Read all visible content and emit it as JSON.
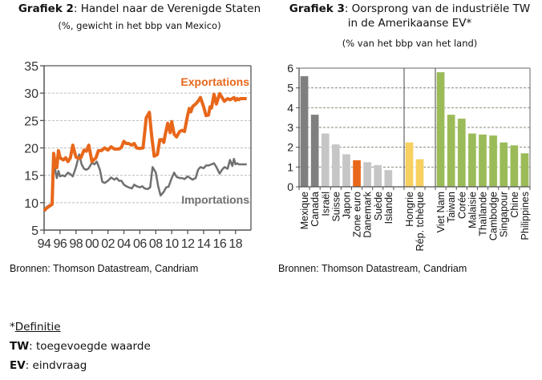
{
  "chart_data": [
    {
      "type": "line",
      "title_bold": "Grafiek 2",
      "title_rest": ": Handel naar de Verenigde Staten",
      "subtitle": "(%, gewicht in het bbp van Mexico)",
      "xlabel": "",
      "ylabel": "",
      "ylim": [
        5,
        35
      ],
      "yticks": [
        "5",
        "10",
        "15",
        "20",
        "25",
        "30",
        "35"
      ],
      "xlim": [
        1994,
        2019.9
      ],
      "xticks": [
        "94",
        "96",
        "98",
        "00",
        "02",
        "04",
        "06",
        "08",
        "10",
        "12",
        "14",
        "16",
        "18"
      ],
      "grid": "horizontal-dashed",
      "series": [
        {
          "name": "Exportations",
          "color": "#e8671a",
          "label_position": "top-right",
          "x": [
            1994.0,
            1994.3,
            1994.6,
            1995.0,
            1995.2,
            1995.45,
            1995.6,
            1995.8,
            1996.0,
            1996.2,
            1996.4,
            1996.7,
            1997.0,
            1997.3,
            1997.6,
            1998.0,
            1998.3,
            1998.6,
            1999.0,
            1999.3,
            1999.6,
            2000.0,
            2000.5,
            2000.8,
            2001.2,
            2001.6,
            2002.0,
            2002.4,
            2002.8,
            2003.1,
            2003.4,
            2003.7,
            2004.0,
            2004.3,
            2004.6,
            2005.0,
            2005.3,
            2005.6,
            2006.0,
            2006.4,
            2006.8,
            2007.2,
            2007.5,
            2007.8,
            2008.2,
            2008.5,
            2008.8,
            2009.0,
            2009.2,
            2009.5,
            2009.8,
            2010.0,
            2010.3,
            2010.6,
            2011.0,
            2011.3,
            2011.6,
            2012.0,
            2012.2,
            2012.4,
            2012.6,
            2012.8,
            2013.0,
            2013.3,
            2013.6,
            2014.0,
            2014.3,
            2014.6,
            2014.8,
            2015.0,
            2015.3,
            2015.6,
            2016.0,
            2016.3,
            2016.6,
            2017.0,
            2017.3,
            2017.6,
            2017.8,
            2018.0,
            2018.2,
            2018.4,
            2018.6,
            2018.8,
            2019.0,
            2019.2,
            2019.4
          ],
          "y": [
            8.5,
            9.0,
            9.3,
            9.7,
            19.0,
            16.5,
            16.4,
            19.5,
            18.2,
            18.0,
            17.8,
            18.2,
            17.5,
            18.2,
            20.5,
            18.3,
            18.1,
            18.2,
            19.6,
            19.4,
            20.5,
            17.5,
            18.2,
            19.5,
            19.5,
            20.0,
            19.6,
            20.2,
            19.8,
            19.8,
            19.8,
            20.1,
            21.2,
            20.8,
            20.8,
            20.5,
            20.8,
            20.0,
            19.9,
            20.0,
            25.5,
            26.5,
            22.0,
            18.5,
            18.8,
            21.5,
            21.5,
            21.0,
            22.5,
            24.5,
            22.8,
            24.8,
            22.5,
            22.0,
            23.0,
            23.2,
            23.0,
            26.0,
            27.2,
            26.6,
            27.5,
            27.8,
            28.0,
            28.5,
            29.2,
            27.5,
            25.9,
            26.0,
            27.5,
            27.3,
            29.8,
            28.0,
            29.9,
            29.2,
            28.5,
            29.0,
            28.8,
            29.0,
            29.2,
            28.7,
            29.0,
            28.8,
            29.0,
            29.0,
            29.0,
            29.0,
            29.0
          ]
        },
        {
          "name": "Importations",
          "color": "#707070",
          "label_position": "bottom-right",
          "x": [
            1994.0,
            1994.3,
            1994.6,
            1995.0,
            1995.2,
            1995.45,
            1995.6,
            1995.8,
            1996.0,
            1996.3,
            1996.6,
            1997.0,
            1997.3,
            1997.6,
            1998.0,
            1998.4,
            1998.7,
            1999.0,
            1999.3,
            1999.6,
            2000.0,
            2000.3,
            2000.6,
            2001.0,
            2001.3,
            2001.6,
            2002.0,
            2002.4,
            2002.8,
            2003.1,
            2003.4,
            2003.7,
            2004.0,
            2004.3,
            2004.6,
            2005.0,
            2005.3,
            2005.6,
            2006.0,
            2006.3,
            2006.6,
            2007.0,
            2007.3,
            2007.6,
            2008.0,
            2008.3,
            2008.6,
            2009.0,
            2009.3,
            2009.6,
            2010.0,
            2010.3,
            2010.6,
            2011.0,
            2011.3,
            2011.6,
            2012.0,
            2012.3,
            2012.6,
            2013.0,
            2013.3,
            2013.6,
            2014.0,
            2014.3,
            2014.6,
            2015.0,
            2015.3,
            2015.6,
            2016.0,
            2016.3,
            2016.6,
            2017.0,
            2017.3,
            2017.6,
            2017.8,
            2018.0,
            2018.2,
            2018.4,
            2018.6,
            2018.8,
            2019.0,
            2019.2,
            2019.4
          ],
          "y": [
            8.5,
            9.2,
            9.5,
            9.8,
            19.0,
            15.5,
            14.5,
            15.8,
            14.8,
            15.0,
            14.8,
            15.5,
            15.2,
            14.8,
            16.5,
            18.8,
            17.0,
            16.2,
            16.0,
            16.3,
            17.3,
            17.0,
            17.5,
            16.0,
            13.8,
            13.6,
            14.0,
            14.6,
            14.2,
            14.5,
            14.0,
            14.0,
            13.3,
            13.0,
            12.8,
            12.6,
            13.3,
            13.0,
            12.8,
            13.0,
            12.6,
            12.5,
            12.8,
            16.5,
            15.5,
            13.0,
            11.3,
            12.0,
            12.8,
            12.9,
            14.5,
            15.5,
            14.7,
            14.5,
            14.5,
            14.3,
            14.8,
            14.5,
            14.2,
            14.5,
            16.0,
            16.5,
            16.3,
            16.8,
            16.8,
            17.0,
            17.2,
            16.5,
            15.3,
            16.0,
            16.5,
            16.2,
            17.8,
            16.7,
            18.0,
            17.0,
            17.2,
            17.0,
            17.0,
            17.0,
            17.0,
            17.0,
            17.0
          ]
        }
      ],
      "source": "Bronnen:  Thomson Datastream, Candriam"
    },
    {
      "type": "bar",
      "title_bold": "Grafiek 3",
      "title_rest": ": Oorsprong van de industriële TW",
      "title_line2": "in de Amerikaanse EV*",
      "subtitle": "(% van het bbp van het land)",
      "xlabel": "",
      "ylabel": "",
      "ylim": [
        0,
        6
      ],
      "yticks": [
        "0",
        "1",
        "2",
        "3",
        "4",
        "5",
        "6"
      ],
      "grid": "horizontal-dashed",
      "groups": [
        {
          "name": "group-1",
          "categories": [
            "Mexique",
            "Canada",
            "Israël",
            "Suisse",
            "Japon",
            "Zone euro",
            "Danemark",
            "Suède",
            "Islande"
          ],
          "values": [
            5.6,
            3.65,
            2.7,
            2.15,
            1.65,
            1.35,
            1.25,
            1.1,
            0.85
          ],
          "colors": [
            "#7f7f7f",
            "#7f7f7f",
            "#c6c6c6",
            "#c6c6c6",
            "#c6c6c6",
            "#e8671a",
            "#c6c6c6",
            "#c6c6c6",
            "#c6c6c6"
          ]
        },
        {
          "name": "group-2",
          "categories": [
            "Hongrie",
            "Rép. tchèque"
          ],
          "values": [
            2.25,
            1.4
          ],
          "colors": [
            "#f7d060",
            "#f7d060"
          ]
        },
        {
          "name": "group-3",
          "categories": [
            "Viet Nam",
            "Taiwan",
            "Corée",
            "Malaisie",
            "Thaïlande",
            "Cambodge",
            "Singapour",
            "Chine",
            "Philippines"
          ],
          "values": [
            5.8,
            3.65,
            3.45,
            2.7,
            2.65,
            2.6,
            2.25,
            2.1,
            1.7
          ],
          "colors": [
            "#9bbb59",
            "#9bbb59",
            "#9bbb59",
            "#9bbb59",
            "#9bbb59",
            "#9bbb59",
            "#9bbb59",
            "#9bbb59",
            "#9bbb59"
          ]
        }
      ],
      "source": "Bronnen:  Thomson Datastream, Candriam"
    }
  ],
  "notes": {
    "star_prefix": "*",
    "definitie": "Definitie",
    "tw_abbr": "TW",
    "tw_text": ": toegevoegde waarde",
    "ev_abbr": "EV",
    "ev_text": ": eindvraag"
  }
}
